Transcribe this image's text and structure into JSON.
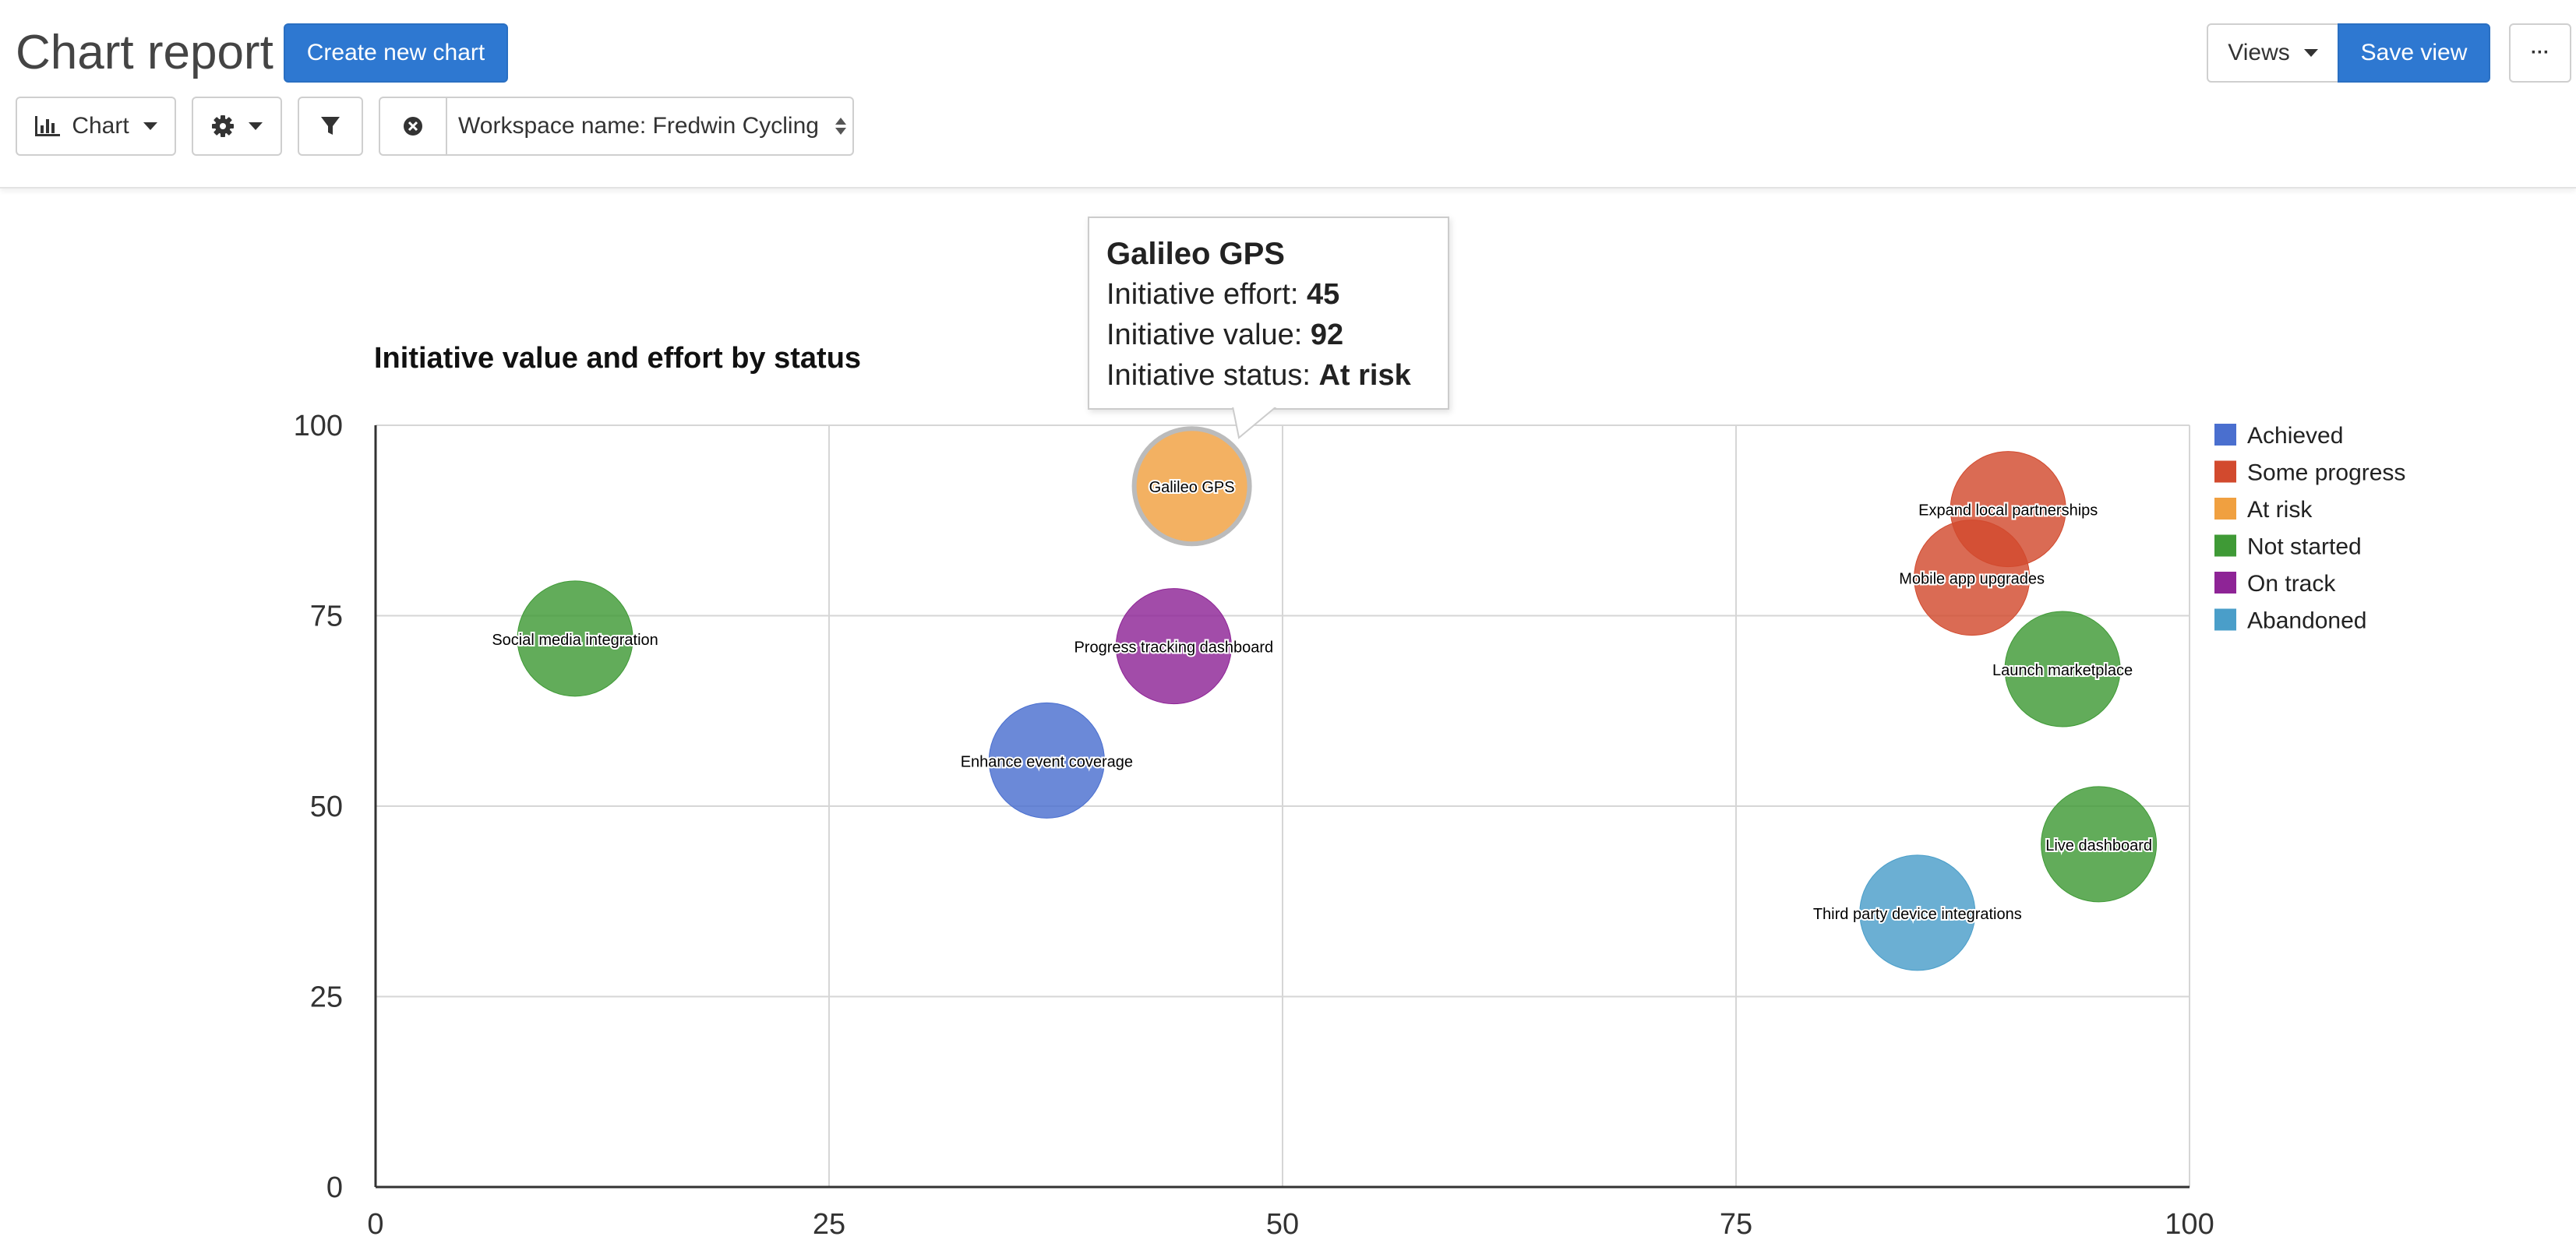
{
  "header": {
    "title": "Chart report",
    "create_button": "Create new chart",
    "views_button": "Views",
    "save_view_button": "Save view",
    "more_button": "···"
  },
  "toolbar": {
    "chart_type_label": "Chart",
    "filter_value": "Workspace name: Fredwin Cycling"
  },
  "icons": {
    "chart": "bar-chart-icon",
    "settings": "gear-icon",
    "filter": "funnel-icon",
    "clear": "circle-x-icon"
  },
  "tooltip": {
    "title": "Galileo GPS",
    "effort_label": "Initiative effort: ",
    "effort_value": "45",
    "value_label": "Initiative value: ",
    "value_value": "92",
    "status_label": "Initiative status: ",
    "status_value": "At risk"
  },
  "chart_data": {
    "type": "scatter",
    "title": "Initiative value and effort by status",
    "xlabel": "",
    "ylabel": "",
    "xlim": [
      0,
      100
    ],
    "ylim": [
      0,
      100
    ],
    "xticks": [
      0,
      25,
      50,
      75,
      100
    ],
    "yticks": [
      0,
      25,
      50,
      75,
      100
    ],
    "grid": true,
    "legend_position": "right",
    "legend": [
      {
        "name": "Achieved",
        "color": "#4a6fcf"
      },
      {
        "name": "Some progress",
        "color": "#d24a2e"
      },
      {
        "name": "At risk",
        "color": "#f0a040"
      },
      {
        "name": "Not started",
        "color": "#3f9a36"
      },
      {
        "name": "On track",
        "color": "#8e2496"
      },
      {
        "name": "Abandoned",
        "color": "#4a9ec9"
      }
    ],
    "points": [
      {
        "label": "Social media integration",
        "x": 11,
        "y": 72,
        "status": "Not started"
      },
      {
        "label": "Galileo GPS",
        "x": 45,
        "y": 92,
        "status": "At risk"
      },
      {
        "label": "Progress tracking dashboard",
        "x": 44,
        "y": 71,
        "status": "On track"
      },
      {
        "label": "Enhance event coverage",
        "x": 37,
        "y": 56,
        "status": "Achieved"
      },
      {
        "label": "Expand local partnerships",
        "x": 90,
        "y": 89,
        "status": "Some progress"
      },
      {
        "label": "Mobile app upgrades",
        "x": 88,
        "y": 80,
        "status": "Some progress"
      },
      {
        "label": "Launch marketplace",
        "x": 93,
        "y": 68,
        "status": "Not started"
      },
      {
        "label": "Live dashboard",
        "x": 95,
        "y": 45,
        "status": "Not started"
      },
      {
        "label": "Third party device integrations",
        "x": 85,
        "y": 36,
        "status": "Abandoned"
      }
    ]
  }
}
